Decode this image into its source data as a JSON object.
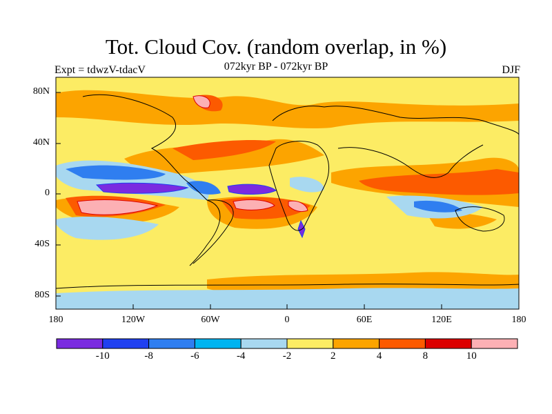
{
  "title": "Tot. Cloud Cov. (random overlap, in %)",
  "subtitle": "072kyr BP - 072kyr BP",
  "left_label": "Expt = tdwzV-tdacV",
  "right_label": "DJF",
  "lat_ticks": [
    "80N",
    "40N",
    "0",
    "40S",
    "80S"
  ],
  "lon_ticks": [
    "180",
    "120W",
    "60W",
    "0",
    "60E",
    "120E",
    "180"
  ],
  "colorbar": {
    "colors": [
      "#7a2be0",
      "#2040f0",
      "#2f7ef0",
      "#00b4f0",
      "#a8d8f0",
      "#fcec64",
      "#fca400",
      "#fc5a00",
      "#dc0000",
      "#fcb0b4"
    ],
    "labels": [
      "-10",
      "-8",
      "-6",
      "-4",
      "-2",
      "2",
      "4",
      "8",
      "10"
    ]
  }
}
